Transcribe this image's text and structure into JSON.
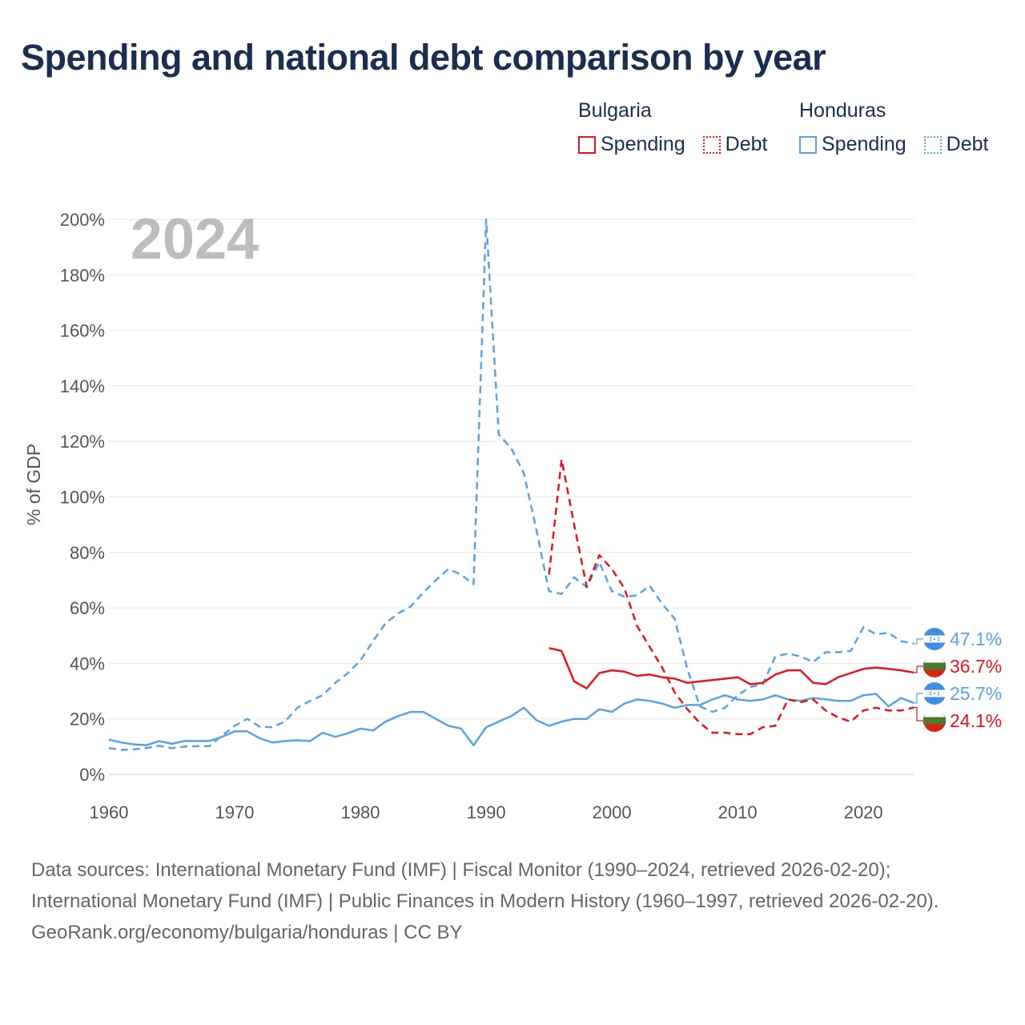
{
  "title": "Spending and national debt comparison by year",
  "legend": {
    "groups": [
      {
        "country": "Bulgaria",
        "color": "#e8141a",
        "items": [
          {
            "label": "Spending",
            "style": "solid"
          },
          {
            "label": "Debt",
            "style": "dotted"
          }
        ]
      },
      {
        "country": "Honduras",
        "color": "#5aa3e3",
        "items": [
          {
            "label": "Spending",
            "style": "solid"
          },
          {
            "label": "Debt",
            "style": "dotted"
          }
        ]
      }
    ]
  },
  "chart_data": {
    "type": "line",
    "year_label": "2024",
    "ylabel": "% of GDP",
    "xlabel": "",
    "xlim": [
      1960,
      2024
    ],
    "ylim": [
      0,
      200
    ],
    "x_ticks": [
      "1960",
      "1970",
      "1980",
      "1990",
      "2000",
      "2010",
      "2020"
    ],
    "x_tick_values": [
      1960,
      1970,
      1980,
      1990,
      2000,
      2010,
      2020
    ],
    "y_ticks": [
      "0%",
      "20%",
      "40%",
      "60%",
      "80%",
      "100%",
      "120%",
      "140%",
      "160%",
      "180%",
      "200%"
    ],
    "y_tick_values": [
      0,
      20,
      40,
      60,
      80,
      100,
      120,
      140,
      160,
      180,
      200
    ],
    "grid": true,
    "series": [
      {
        "name": "Honduras Debt",
        "country": "Honduras",
        "metric": "Debt",
        "color": "#5aa3e3",
        "dash": "dashed",
        "x": [
          1960,
          1961,
          1962,
          1963,
          1964,
          1965,
          1966,
          1967,
          1968,
          1969,
          1970,
          1971,
          1972,
          1973,
          1974,
          1975,
          1976,
          1977,
          1978,
          1979,
          1980,
          1981,
          1982,
          1983,
          1984,
          1985,
          1986,
          1987,
          1988,
          1989,
          1990,
          1991,
          1992,
          1993,
          1994,
          1995,
          1996,
          1997,
          1998,
          1999,
          2000,
          2001,
          2002,
          2003,
          2004,
          2005,
          2006,
          2007,
          2008,
          2009,
          2010,
          2011,
          2012,
          2013,
          2014,
          2015,
          2016,
          2017,
          2018,
          2019,
          2020,
          2021,
          2022,
          2023,
          2024
        ],
        "values": [
          9.5,
          8.8,
          9,
          9.5,
          10.3,
          9.4,
          10,
          10.2,
          10.2,
          14,
          17.5,
          20,
          17.2,
          17,
          19,
          24,
          26.5,
          28.5,
          33,
          36.5,
          41,
          48,
          54.5,
          58,
          60.5,
          65.5,
          70,
          74,
          72,
          68.5,
          200,
          122.5,
          117.5,
          108.5,
          88,
          66,
          65,
          71,
          67.5,
          76.5,
          66,
          64,
          64.5,
          68,
          61.5,
          56,
          38,
          24.5,
          22.5,
          24,
          28.5,
          31.5,
          32.5,
          42.5,
          43.5,
          42.5,
          40.5,
          44,
          44,
          44.5,
          53,
          50.5,
          51,
          48,
          47.1
        ]
      },
      {
        "name": "Honduras Spending",
        "country": "Honduras",
        "metric": "Spending",
        "color": "#5aa3e3",
        "dash": "solid",
        "x": [
          1960,
          1961,
          1962,
          1963,
          1964,
          1965,
          1966,
          1967,
          1968,
          1969,
          1970,
          1971,
          1972,
          1973,
          1974,
          1975,
          1976,
          1977,
          1978,
          1979,
          1980,
          1981,
          1982,
          1983,
          1984,
          1985,
          1986,
          1987,
          1988,
          1989,
          1990,
          1991,
          1992,
          1993,
          1994,
          1995,
          1996,
          1997,
          1998,
          1999,
          2000,
          2001,
          2002,
          2003,
          2004,
          2005,
          2006,
          2007,
          2008,
          2009,
          2010,
          2011,
          2012,
          2013,
          2014,
          2015,
          2016,
          2017,
          2018,
          2019,
          2020,
          2021,
          2022,
          2023,
          2024
        ],
        "values": [
          12.5,
          11.5,
          10.8,
          10.5,
          12,
          11,
          12,
          12,
          12,
          13.5,
          15.5,
          15.5,
          13,
          11.5,
          12,
          12.3,
          12,
          15,
          13.5,
          14.8,
          16.5,
          15.8,
          19,
          21,
          22.5,
          22.5,
          20,
          17.5,
          16.5,
          10.5,
          17,
          19,
          21,
          24,
          19.5,
          17.5,
          19,
          20,
          20,
          23.5,
          22.5,
          25.5,
          27,
          26.5,
          25.5,
          24,
          25,
          25,
          27,
          28.5,
          27,
          26.5,
          27,
          28.5,
          27,
          26.5,
          27.5,
          27,
          26.5,
          26.5,
          28.5,
          29,
          24.5,
          27.5,
          25.7
        ]
      },
      {
        "name": "Bulgaria Debt",
        "country": "Bulgaria",
        "metric": "Debt",
        "color": "#e8141a",
        "dash": "dashed",
        "x": [
          1995,
          1996,
          1997,
          1998,
          1999,
          2000,
          2001,
          2002,
          2003,
          2004,
          2005,
          2006,
          2007,
          2008,
          2009,
          2010,
          2011,
          2012,
          2013,
          2014,
          2015,
          2016,
          2017,
          2018,
          2019,
          2020,
          2021,
          2022,
          2023,
          2024
        ],
        "values": [
          72,
          113.5,
          90,
          67.5,
          79,
          74,
          67,
          53.5,
          46,
          38.5,
          29.5,
          23.5,
          18.5,
          15,
          15,
          14.5,
          14.5,
          17,
          17.5,
          27,
          26,
          27,
          23,
          20.5,
          19,
          23,
          24,
          23,
          23,
          24.1
        ]
      },
      {
        "name": "Bulgaria Spending",
        "country": "Bulgaria",
        "metric": "Spending",
        "color": "#e8141a",
        "dash": "solid",
        "x": [
          1995,
          1996,
          1997,
          1998,
          1999,
          2000,
          2001,
          2002,
          2003,
          2004,
          2005,
          2006,
          2007,
          2008,
          2009,
          2010,
          2011,
          2012,
          2013,
          2014,
          2015,
          2016,
          2017,
          2018,
          2019,
          2020,
          2021,
          2022,
          2023,
          2024
        ],
        "values": [
          45.5,
          44.5,
          33.5,
          31,
          36.5,
          37.5,
          37,
          35.5,
          36,
          35,
          34.5,
          33,
          33.5,
          34,
          34.5,
          35,
          32.5,
          33,
          36,
          37.5,
          37.5,
          33,
          32.5,
          35,
          36.5,
          38,
          38.5,
          38,
          37.5,
          36.7
        ]
      }
    ],
    "end_labels": [
      {
        "series": "Honduras Debt",
        "text": "47.1%",
        "value": 47.1,
        "color": "#5aa3e3"
      },
      {
        "series": "Bulgaria Spending",
        "text": "36.7%",
        "value": 36.7,
        "color": "#e8141a"
      },
      {
        "series": "Honduras Spending",
        "text": "25.7%",
        "value": 25.7,
        "color": "#5aa3e3"
      },
      {
        "series": "Bulgaria Debt",
        "text": "24.1%",
        "value": 24.1,
        "color": "#e8141a"
      }
    ]
  },
  "footer": {
    "sources": "Data sources: International Monetary Fund (IMF) | Fiscal Monitor (1990–2024, retrieved 2026-02-20); International Monetary Fund (IMF) | Public Finances in Modern History (1960–1997, retrieved 2026-02-20).",
    "credit": "GeoRank.org/economy/bulgaria/honduras | CC BY"
  }
}
